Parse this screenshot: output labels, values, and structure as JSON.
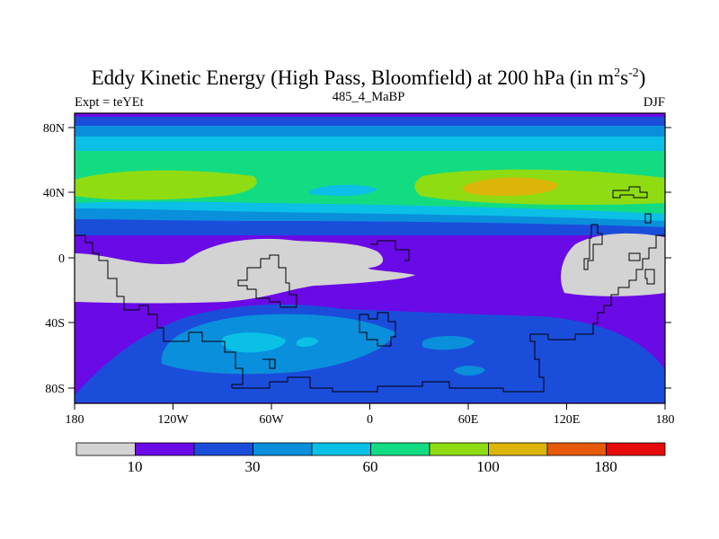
{
  "title_main": "Eddy Kinetic Energy (High Pass, Bloomfield) at 200 hPa (in m",
  "title_sup1": "2",
  "title_mid": "s",
  "title_sup2": "-2",
  "title_close": ")",
  "left_label": "Expt = teYEt",
  "center_label": "485_4_MaBP",
  "right_label": "DJF",
  "lat_ticks": [
    "80N",
    "40N",
    "0",
    "40S",
    "80S"
  ],
  "lon_ticks": [
    "180",
    "120W",
    "60W",
    "0",
    "60E",
    "120E",
    "180"
  ],
  "colorbar": {
    "colors": [
      "#d3d3d3",
      "#6a0ae6",
      "#1b4ddb",
      "#0a8fdc",
      "#0ac0e6",
      "#12dc82",
      "#8fdc12",
      "#dcb40a",
      "#e65a0a",
      "#e60a0a"
    ],
    "labels": [
      "10",
      "30",
      "60",
      "100",
      "180"
    ]
  },
  "colors": {
    "gray": "#d3d3d3",
    "purple": "#6a0ae6",
    "blue": "#1b4ddb",
    "midblue": "#0a8fdc",
    "cyan": "#0ac0e6",
    "green": "#12dc82",
    "yellowgreen": "#8fdc12",
    "orange": "#dcb40a"
  }
}
